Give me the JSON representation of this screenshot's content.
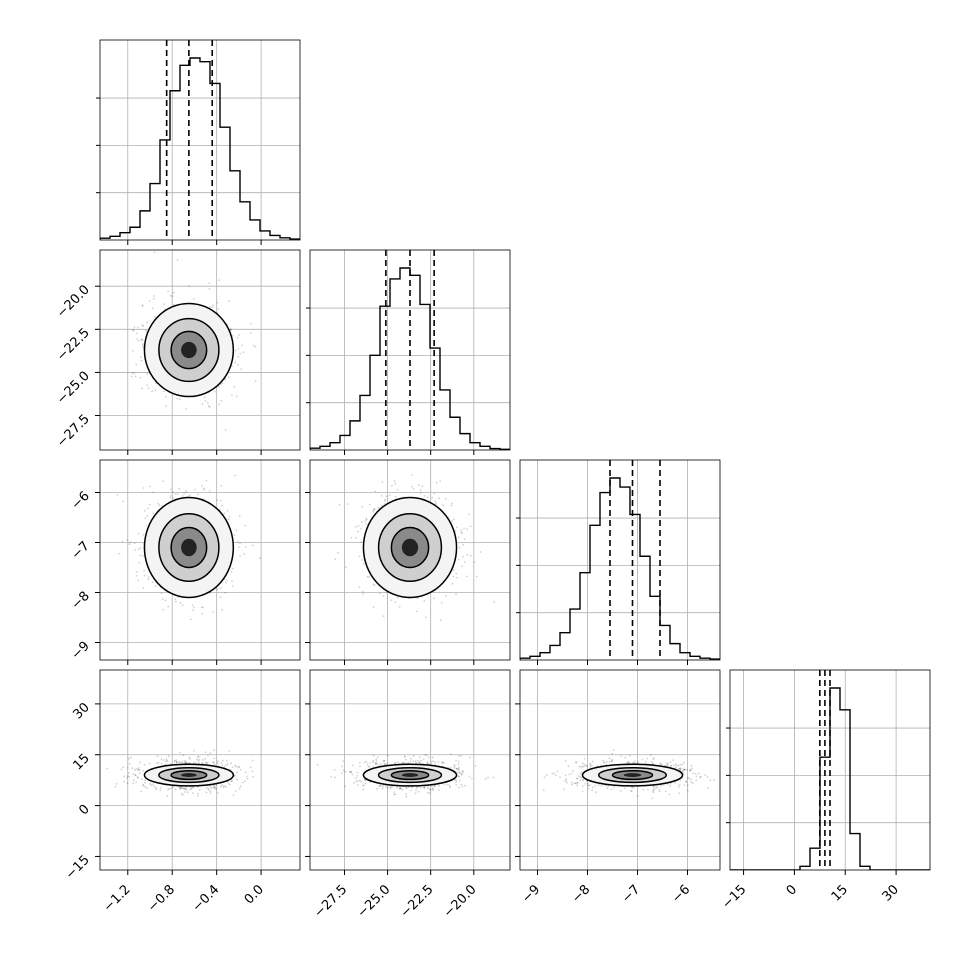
{
  "chart_data": {
    "type": "corner",
    "parameters": [
      {
        "ticks": [
          -1.2,
          -0.8,
          -0.4,
          0.0
        ],
        "tick_labels": [
          "−1.2",
          "−0.8",
          "−0.4",
          "0.0"
        ],
        "range": [
          -1.45,
          0.35
        ],
        "median": -0.65,
        "q16": -0.85,
        "q84": -0.44,
        "sigma": 0.2
      },
      {
        "ticks": [
          -27.5,
          -25.0,
          -22.5,
          -20.0
        ],
        "tick_labels": [
          "−27.5",
          "−25.0",
          "−22.5",
          "−20.0"
        ],
        "range": [
          -29.5,
          -17.9
        ],
        "median": -23.7,
        "q16": -25.1,
        "q84": -22.3,
        "sigma": 1.35
      },
      {
        "ticks": [
          -9,
          -8,
          -7,
          -6
        ],
        "tick_labels": [
          "−9",
          "−8",
          "−7",
          "−6"
        ],
        "range": [
          -9.35,
          -5.35
        ],
        "median": -7.1,
        "q16": -7.55,
        "q84": -6.55,
        "sigma": 0.5
      },
      {
        "ticks": [
          -15,
          0,
          15,
          30
        ],
        "tick_labels": [
          "−15",
          "0",
          "15",
          "30"
        ],
        "range": [
          -19,
          40
        ],
        "median": 9,
        "q16": 7.5,
        "q84": 10.5,
        "sigma": 1.6
      }
    ],
    "histograms": [
      [
        0.01,
        0.02,
        0.04,
        0.07,
        0.16,
        0.31,
        0.55,
        0.82,
        0.96,
        1.0,
        0.98,
        0.86,
        0.62,
        0.38,
        0.21,
        0.11,
        0.05,
        0.025,
        0.012,
        0.005
      ],
      [
        0.01,
        0.02,
        0.04,
        0.08,
        0.16,
        0.3,
        0.52,
        0.79,
        0.94,
        1.0,
        0.96,
        0.8,
        0.56,
        0.33,
        0.18,
        0.09,
        0.04,
        0.02,
        0.008,
        0.004
      ],
      [
        0.01,
        0.02,
        0.04,
        0.08,
        0.15,
        0.28,
        0.48,
        0.74,
        0.92,
        1.0,
        0.95,
        0.8,
        0.57,
        0.35,
        0.19,
        0.09,
        0.04,
        0.02,
        0.01,
        0.005
      ],
      [
        0,
        0,
        0,
        0,
        0,
        0,
        0,
        0.02,
        0.12,
        0.62,
        1.0,
        0.88,
        0.2,
        0.02,
        0,
        0,
        0,
        0,
        0,
        0
      ]
    ],
    "quantile_lines": "dashed",
    "grid": true
  }
}
